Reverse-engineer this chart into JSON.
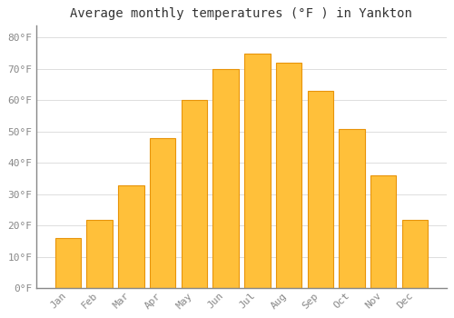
{
  "title": "Average monthly temperatures (°F ) in Yankton",
  "months": [
    "Jan",
    "Feb",
    "Mar",
    "Apr",
    "May",
    "Jun",
    "Jul",
    "Aug",
    "Sep",
    "Oct",
    "Nov",
    "Dec"
  ],
  "values": [
    16,
    22,
    33,
    48,
    60,
    70,
    75,
    72,
    63,
    51,
    36,
    22
  ],
  "bar_color_face": "#FFC03A",
  "bar_color_edge": "#E8940A",
  "background_color": "#FFFFFF",
  "grid_color": "#DDDDDD",
  "ylim": [
    0,
    84
  ],
  "yticks": [
    0,
    10,
    20,
    30,
    40,
    50,
    60,
    70,
    80
  ],
  "ytick_labels": [
    "0°F",
    "10°F",
    "20°F",
    "30°F",
    "40°F",
    "50°F",
    "60°F",
    "70°F",
    "80°F"
  ],
  "title_fontsize": 10,
  "tick_fontsize": 8,
  "tick_color": "#888888",
  "bar_width": 0.82
}
